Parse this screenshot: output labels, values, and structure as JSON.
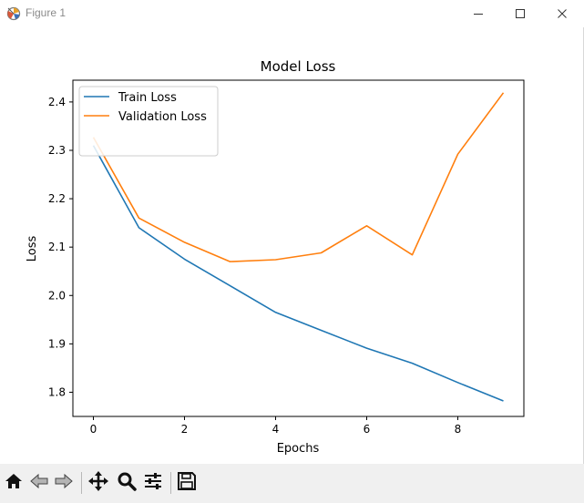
{
  "window": {
    "title": "Figure 1"
  },
  "toolbar": {
    "tools": [
      {
        "name": "home-icon"
      },
      {
        "name": "back-icon"
      },
      {
        "name": "forward-icon"
      },
      {
        "name": "pan-icon"
      },
      {
        "name": "zoom-icon"
      },
      {
        "name": "configure-subplots-icon"
      },
      {
        "name": "save-icon"
      }
    ]
  },
  "chart_data": {
    "type": "line",
    "title": "Model Loss",
    "xlabel": "Epochs",
    "ylabel": "Loss",
    "xlim": [
      -0.45,
      9.45
    ],
    "ylim": [
      1.75,
      2.445
    ],
    "xticks": [
      0,
      2,
      4,
      6,
      8
    ],
    "yticks": [
      1.8,
      1.9,
      2.0,
      2.1,
      2.2,
      2.3,
      2.4
    ],
    "x": [
      0,
      1,
      2,
      3,
      4,
      5,
      6,
      7,
      8,
      9
    ],
    "legend_position": "upper-left",
    "grid": false,
    "series": [
      {
        "name": "Train Loss",
        "color": "#1f77b4",
        "values": [
          2.31,
          2.14,
          2.075,
          2.02,
          1.965,
          1.928,
          1.891,
          1.86,
          1.82,
          1.782
        ]
      },
      {
        "name": "Validation Loss",
        "color": "#ff7f0e",
        "values": [
          2.327,
          2.16,
          2.11,
          2.07,
          2.074,
          2.088,
          2.144,
          2.084,
          2.292,
          2.419
        ]
      }
    ]
  }
}
